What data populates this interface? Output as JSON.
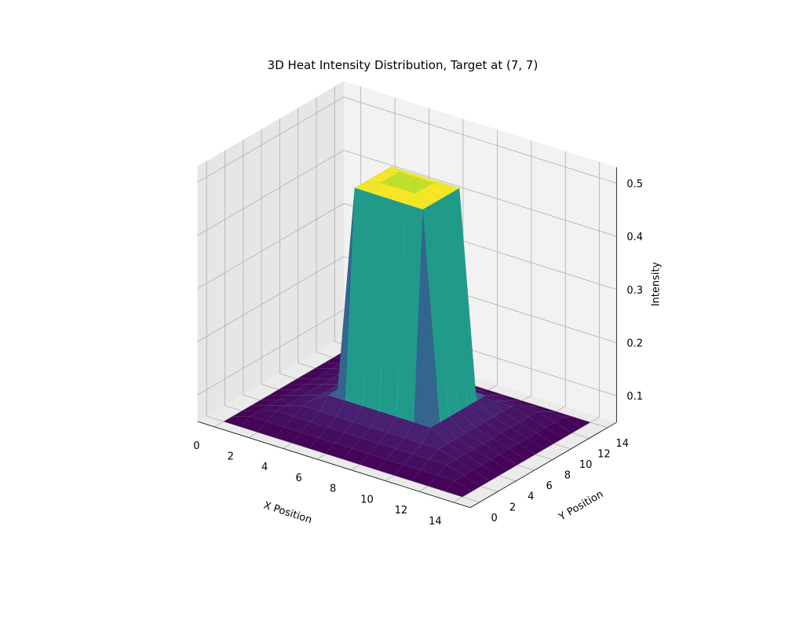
{
  "chart_data": {
    "type": "surface3d",
    "title": "3D Heat Intensity Distribution, Target at (7, 7)",
    "xlabel": "X Position",
    "ylabel": "Y Position",
    "zlabel": "Intensity",
    "xlim": [
      0,
      14
    ],
    "ylim": [
      0,
      14
    ],
    "zlim": [
      0.05,
      0.53
    ],
    "xticks": [
      0,
      2,
      4,
      6,
      8,
      10,
      12,
      14
    ],
    "yticks": [
      0,
      2,
      4,
      6,
      8,
      10,
      12,
      14
    ],
    "zticks": [
      0.1,
      0.2,
      0.3,
      0.4,
      0.5
    ],
    "zticklabels": [
      "0.1",
      "0.2",
      "0.3",
      "0.4",
      "0.5"
    ],
    "colormap": "viridis",
    "grid": true,
    "target": [
      7,
      7
    ],
    "levels": [
      {
        "ring": 0,
        "intensity": 0.33
      },
      {
        "ring": 1,
        "intensity": 0.5
      },
      {
        "ring": 2,
        "intensity": 0.49
      },
      {
        "ring": 3,
        "intensity": 0.1
      },
      {
        "ring": 4,
        "intensity": 0.08
      },
      {
        "ring": 5,
        "intensity": 0.07
      },
      {
        "ring": 6,
        "intensity": 0.06
      },
      {
        "ring": 7,
        "intensity": 0.05
      }
    ]
  }
}
